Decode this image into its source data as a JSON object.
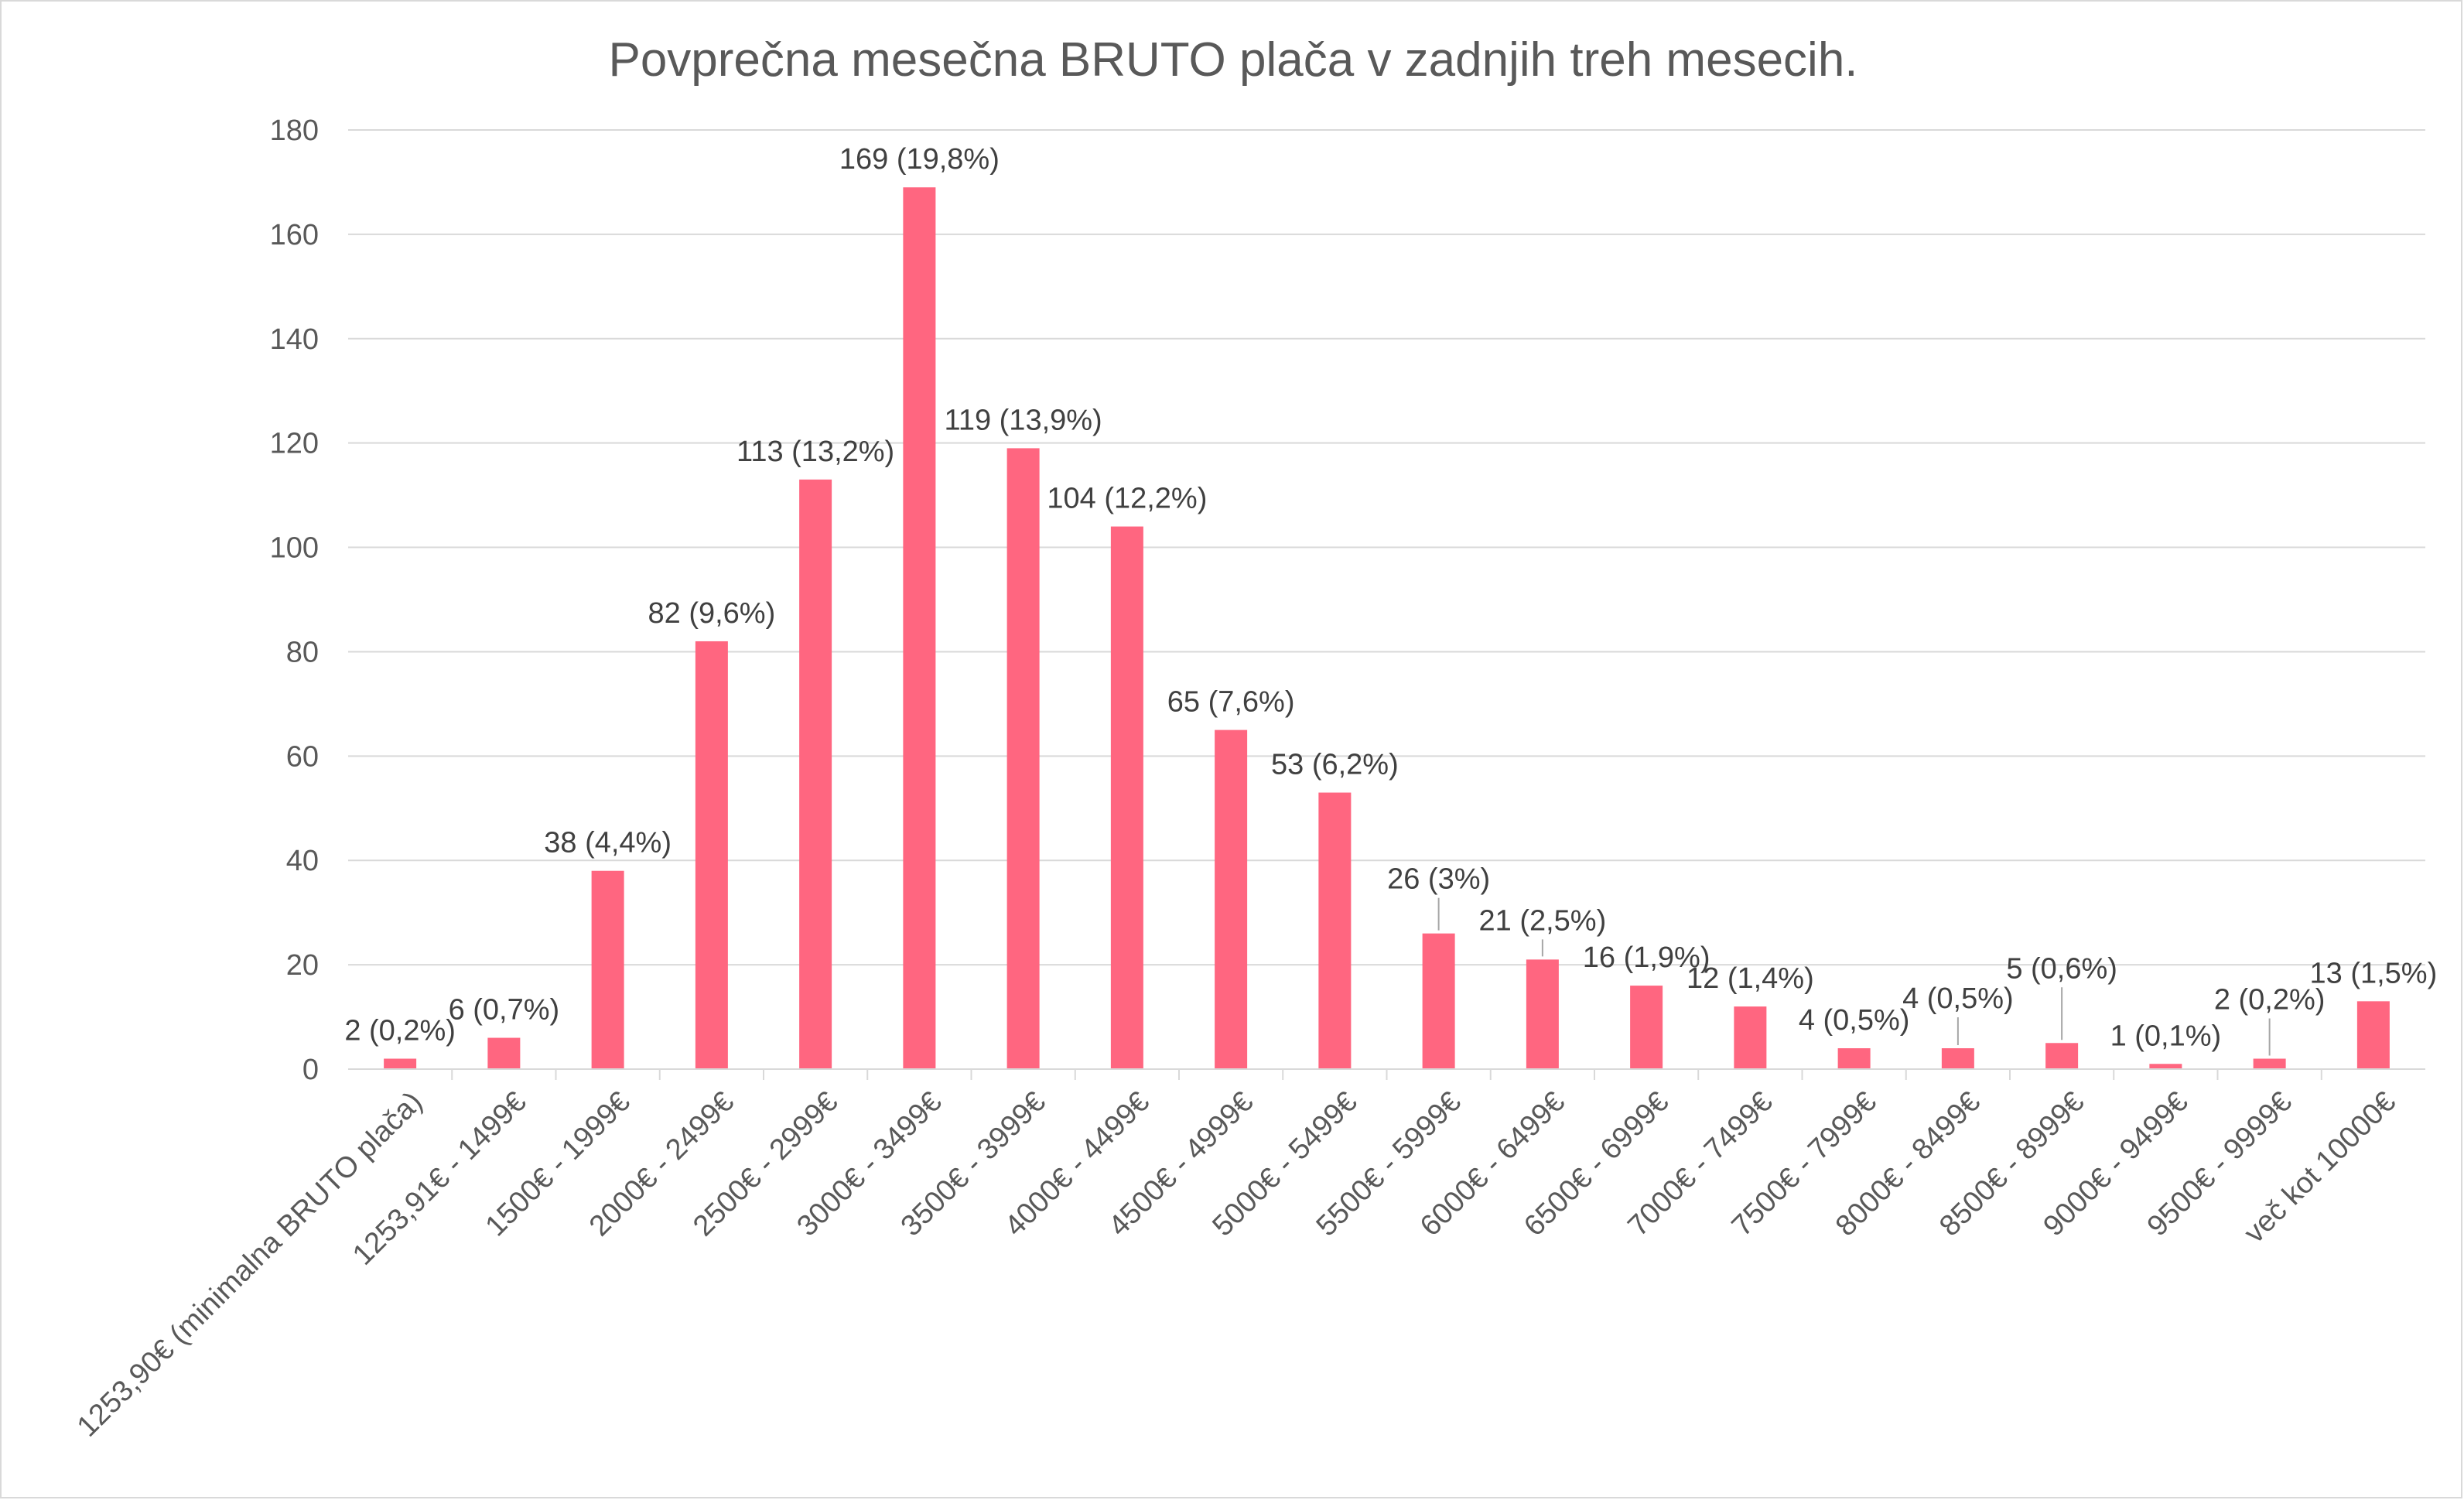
{
  "chart_data": {
    "type": "bar",
    "title": "Povprečna mesečna BRUTO plača v zadnjih treh mesecih.",
    "xlabel": "",
    "ylabel": "",
    "ylim": [
      0,
      180
    ],
    "yticks": [
      "0",
      "20",
      "40",
      "60",
      "80",
      "100",
      "120",
      "140",
      "160",
      "180"
    ],
    "grid": true,
    "legend": "none",
    "color": "#ff6680",
    "categories": [
      "1253,90€ (minimalna BRUTO plača)",
      "1253,91€ - 1499€",
      "1500€ - 1999€",
      "2000€ - 2499€",
      "2500€ - 2999€",
      "3000€ - 3499€",
      "3500€ - 3999€",
      "4000€ - 4499€",
      "4500€ - 4999€",
      "5000€ - 5499€",
      "5500€ - 5999€",
      "6000€ - 6499€",
      "6500€ - 6999€",
      "7000€ - 7499€",
      "7500€ - 7999€",
      "8000€ - 8499€",
      "8500€ - 8999€",
      "9000€ - 9499€",
      "9500€ - 9999€",
      "več kot 10000€"
    ],
    "values": [
      2,
      6,
      38,
      82,
      113,
      169,
      119,
      104,
      65,
      53,
      26,
      21,
      16,
      12,
      4,
      4,
      5,
      1,
      2,
      13
    ],
    "data_labels": [
      "2 (0,2%)",
      "6 (0,7%)",
      "38 (4,4%)",
      "82 (9,6%)",
      "113 (13,2%)",
      "169 (19,8%)",
      "119 (13,9%)",
      "104 (12,2%)",
      "65 (7,6%)",
      "53 (6,2%)",
      "26 (3%)",
      "21 (2,5%)",
      "16 (1,9%)",
      "12 (1,4%)",
      "4 (0,5%)",
      "4 (0,5%)",
      "5 (0,6%)",
      "1 (0,1%)",
      "2 (0,2%)",
      "13 (1,5%)"
    ]
  }
}
